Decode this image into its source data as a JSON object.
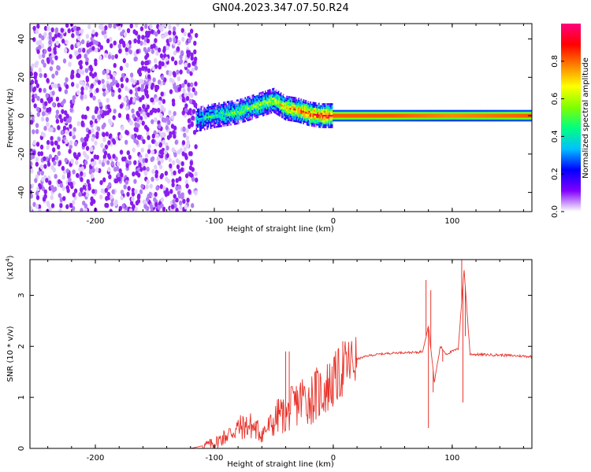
{
  "figure_title": "GN04.2023.347.07.50.R24",
  "chart_data": [
    {
      "type": "heatmap",
      "title": "GN04.2023.347.07.50.R24",
      "xlabel": "Height of straight line (km)",
      "ylabel": "Frequency (Hz)",
      "xlim": [
        -255,
        167
      ],
      "ylim": [
        -50,
        48
      ],
      "xticks": [
        -200,
        -100,
        0,
        100
      ],
      "xtick_labels": [
        "-200",
        "-100",
        "0",
        "100"
      ],
      "yticks": [
        40,
        20,
        0,
        -20,
        -40
      ],
      "ytick_labels": [
        "40",
        "20",
        "0",
        "-20",
        "-40"
      ],
      "grid": false,
      "colorbar": {
        "label": "Normalized spectral amplitude",
        "range": [
          0,
          1
        ],
        "ticks": [
          0.0,
          0.2,
          0.4,
          0.6,
          0.8
        ],
        "tick_labels": [
          "0.0",
          "0.2",
          "0.4",
          "0.6",
          "0.8"
        ],
        "colormap": [
          "#ffffff",
          "#8000ff",
          "#0000ff",
          "#00c0ff",
          "#00ff80",
          "#80ff00",
          "#ffff00",
          "#ff8000",
          "#ff0000",
          "#ff0080"
        ]
      },
      "regions": [
        {
          "name": "noise",
          "x_range": [
            -255,
            -115
          ],
          "freq_range": [
            -50,
            48
          ],
          "amplitude": 0.1
        },
        {
          "name": "signal",
          "x": [
            -115,
            -100,
            -80,
            -60,
            -50,
            -40,
            -30,
            -20,
            -10,
            0,
            50,
            100,
            167
          ],
          "freq_center": [
            -2,
            0,
            2,
            6,
            8,
            4,
            3,
            1,
            0,
            0,
            0,
            0,
            0
          ],
          "amplitude": [
            0.4,
            0.45,
            0.5,
            0.55,
            0.6,
            0.7,
            0.8,
            0.85,
            0.9,
            0.95,
            0.95,
            0.9,
            0.95
          ]
        }
      ]
    },
    {
      "type": "line",
      "xlabel": "Height of straight line (km)",
      "ylabel": "SNR (10 * v/v)",
      "y_multiplier": "(x10",
      "y_multiplier_exp": "4",
      "y_multiplier_close": ")",
      "xlim": [
        -255,
        167
      ],
      "ylim": [
        0,
        3.7
      ],
      "xticks": [
        -200,
        -100,
        0,
        100
      ],
      "xtick_labels": [
        "-200",
        "-100",
        "0",
        "100"
      ],
      "yticks": [
        0,
        1,
        2,
        3
      ],
      "ytick_labels": [
        "0",
        "1",
        "2",
        "3"
      ],
      "color": "#e8332a",
      "grid": false,
      "series": [
        {
          "x": [
            -255,
            -200,
            -150,
            -120,
            -110,
            -100,
            -90,
            -80,
            -70,
            -60,
            -50,
            -45,
            -40,
            -35,
            -30,
            -25,
            -20,
            -15,
            -10,
            -5,
            0,
            5,
            10,
            20,
            30,
            40,
            50,
            60,
            70,
            75,
            80,
            85,
            90,
            95,
            100,
            105,
            110,
            115,
            120,
            140,
            167
          ],
          "y": [
            0.0,
            0.0,
            0.0,
            0.0,
            0.05,
            0.1,
            0.25,
            0.4,
            0.45,
            0.3,
            0.5,
            0.7,
            0.6,
            0.8,
            0.9,
            1.0,
            0.95,
            1.05,
            1.1,
            1.2,
            1.3,
            1.45,
            1.6,
            1.75,
            1.82,
            1.85,
            1.87,
            1.88,
            1.88,
            1.9,
            2.4,
            1.3,
            2.0,
            1.85,
            1.9,
            1.95,
            3.5,
            1.85,
            1.84,
            1.83,
            1.8
          ],
          "spikes": [
            {
              "x": 78,
              "y": 3.3
            },
            {
              "x": 80,
              "y": 0.4
            },
            {
              "x": 82,
              "y": 3.1
            },
            {
              "x": 84,
              "y": 1.1
            },
            {
              "x": 92,
              "y": 1.7
            },
            {
              "x": 108,
              "y": 3.7
            },
            {
              "x": 109,
              "y": 0.9
            },
            {
              "x": 111,
              "y": 2.2
            },
            {
              "x": 8,
              "y": 2.1
            },
            {
              "x": -40,
              "y": 1.9
            },
            {
              "x": -37,
              "y": 1.9
            }
          ]
        }
      ]
    }
  ]
}
